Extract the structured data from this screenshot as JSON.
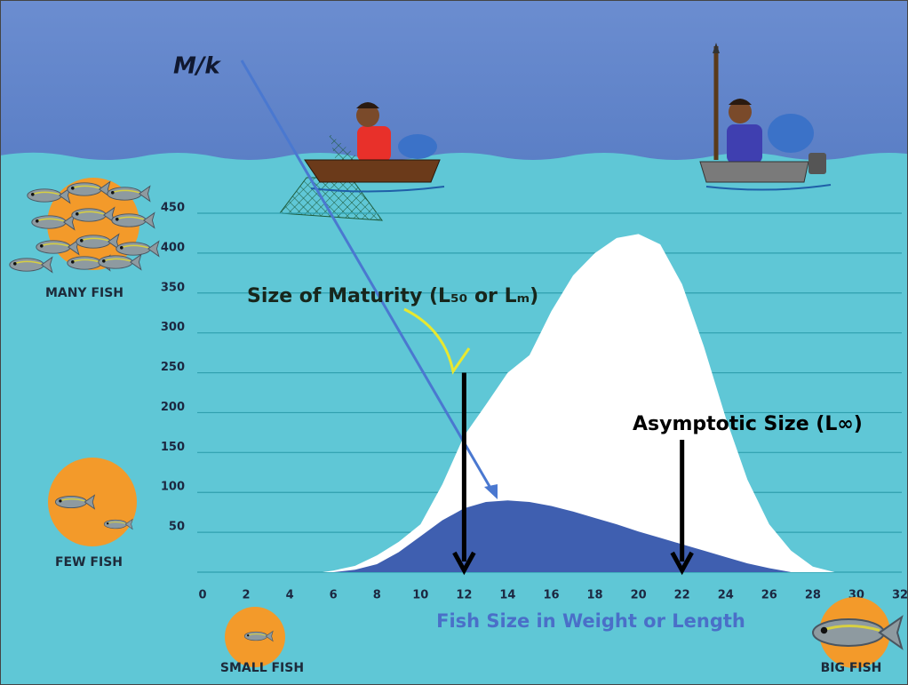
{
  "chart_data": {
    "type": "area",
    "x_label": "Fish Size in Weight or Length",
    "x": [
      5.5,
      6,
      7,
      8,
      9,
      10,
      11,
      12,
      13,
      14,
      15,
      16,
      17,
      18,
      19,
      20,
      21,
      22,
      23,
      24,
      25,
      26,
      27,
      28,
      29
    ],
    "series": [
      {
        "color": "#ffffff",
        "values": [
          0,
          2,
          8,
          21,
          38,
          60,
          110,
          171,
          210,
          250,
          272,
          327,
          372,
          400,
          419,
          424,
          411,
          361,
          283,
          194,
          116,
          60,
          27,
          7,
          0
        ]
      },
      {
        "color": "#3f5fb0",
        "values": [
          null,
          0,
          3,
          10,
          25,
          45,
          65,
          80,
          88,
          90,
          88,
          83,
          76,
          68,
          60,
          51,
          43,
          35,
          27,
          19,
          11,
          5,
          0,
          null,
          null
        ]
      }
    ],
    "xlim": [
      0,
      32
    ],
    "ylim": [
      0,
      450
    ],
    "xticks": [
      0,
      2,
      4,
      6,
      8,
      10,
      12,
      14,
      16,
      18,
      20,
      22,
      24,
      26,
      28,
      30,
      32
    ],
    "yticks": [
      50,
      100,
      150,
      200,
      250,
      300,
      350,
      400,
      450
    ],
    "grid": true,
    "annotations": [
      {
        "text": "M/k"
      },
      {
        "text": "Size of Maturity (L₅₀ or Lₘ)",
        "x": 12,
        "y": 250
      },
      {
        "text": "Asymptotic Size (L∞)",
        "x": 22,
        "y": 166
      }
    ],
    "icon_labels": [
      "MANY FISH",
      "FEW FISH",
      "SMALL FISH",
      "BIG FISH"
    ]
  }
}
